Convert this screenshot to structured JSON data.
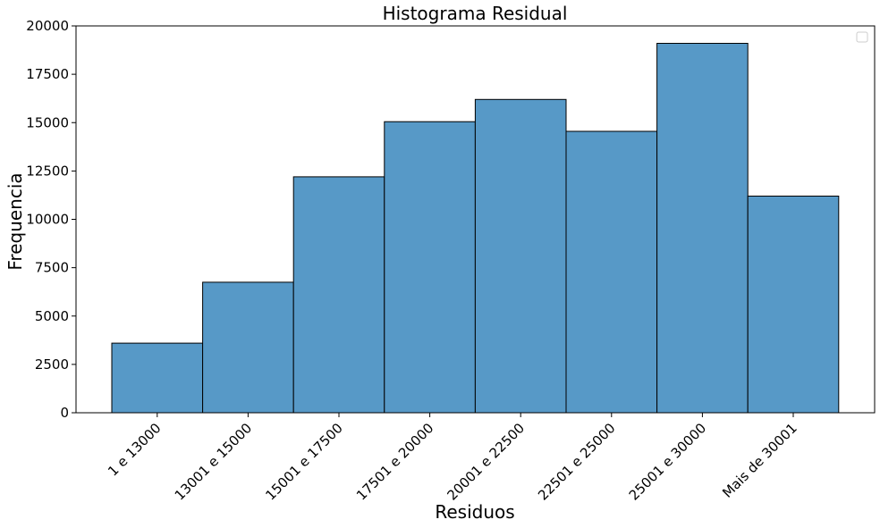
{
  "chart_data": {
    "type": "bar",
    "title": "Histograma Residual",
    "xlabel": "Residuos",
    "ylabel": "Frequencia",
    "categories": [
      "1 e 13000",
      "13001 e 15000",
      "15001 e 17500",
      "17501 e 20000",
      "20001 e 22500",
      "22501 e 25000",
      "25001 e 30000",
      "Mais de 30001"
    ],
    "values": [
      3600,
      6750,
      12200,
      15050,
      16200,
      14550,
      19100,
      11200
    ],
    "ylim": [
      0,
      20000
    ],
    "yticks": [
      "0",
      "2500",
      "5000",
      "7500",
      "10000",
      "12500",
      "15000",
      "17500",
      "20000"
    ],
    "grid": false,
    "legend": "top-right",
    "bar_color": "#5799c7",
    "edge_color": "#000000"
  }
}
